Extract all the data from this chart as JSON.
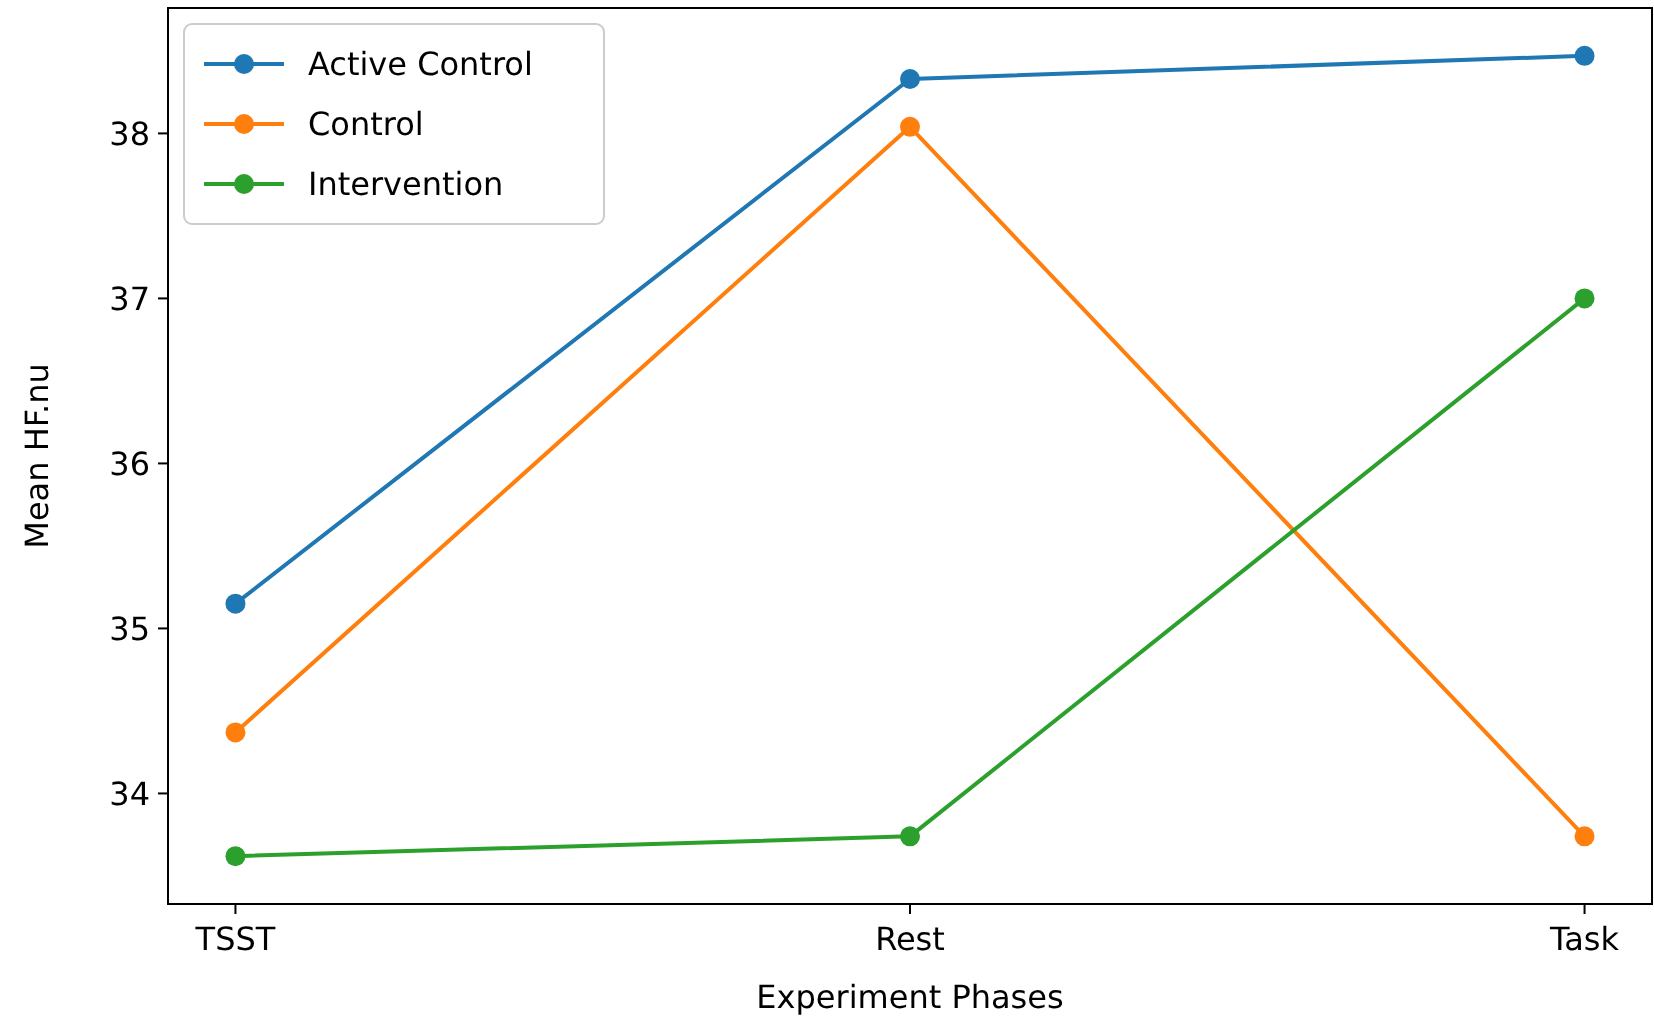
{
  "chart_data": {
    "type": "line",
    "xlabel": "Experiment Phases",
    "ylabel": "Mean HF.nu",
    "categories": [
      "TSST",
      "Rest",
      "Task"
    ],
    "series": [
      {
        "name": "Active Control",
        "color": "#1f77b4",
        "values": [
          35.15,
          38.33,
          38.47
        ]
      },
      {
        "name": "Control",
        "color": "#ff7f0e",
        "values": [
          34.37,
          38.04,
          33.74
        ]
      },
      {
        "name": "Intervention",
        "color": "#2ca02c",
        "values": [
          33.62,
          33.74,
          37.0
        ]
      }
    ],
    "ylim": [
      33.33,
      38.76
    ],
    "yticks": [
      34,
      35,
      36,
      37,
      38
    ],
    "legend": "top left",
    "marker": "circle",
    "line_style": "solid",
    "grid": false
  }
}
